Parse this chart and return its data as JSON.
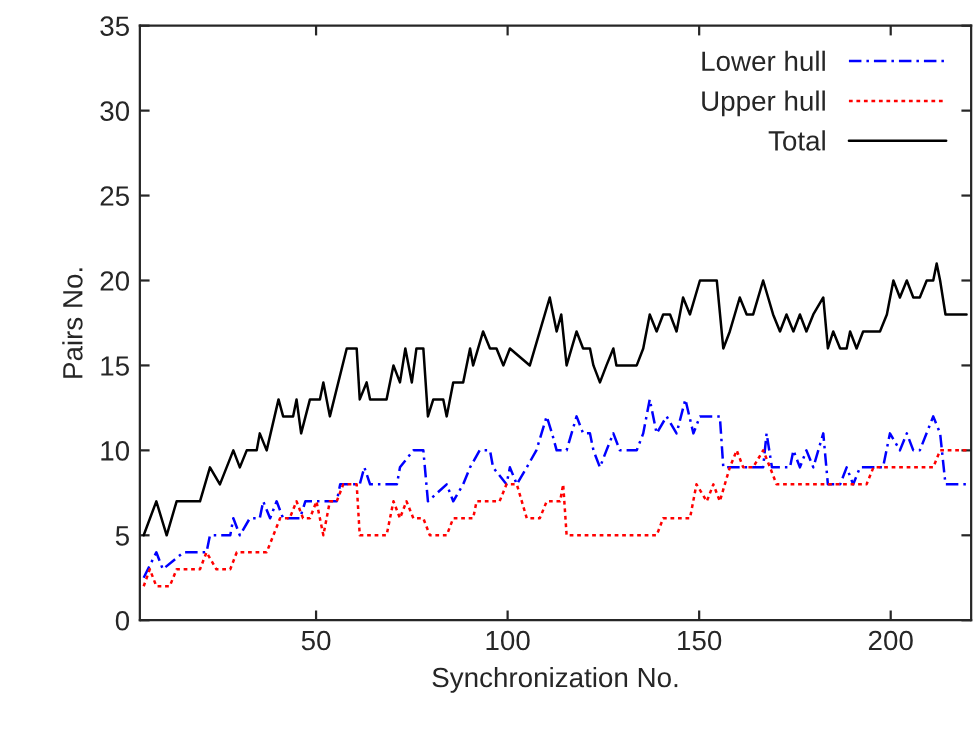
{
  "chart_data": {
    "type": "line",
    "xlabel": "Synchronization No.",
    "ylabel": "Pairs No.",
    "xlim": [
      4,
      221
    ],
    "ylim": [
      0,
      35
    ],
    "xticks": [
      50,
      100,
      150,
      200
    ],
    "yticks": [
      0,
      5,
      10,
      15,
      20,
      25,
      30,
      35
    ],
    "grid": false,
    "legend": "top right",
    "marker": "none",
    "series": [
      {
        "name": "Lower hull",
        "color": "#0000ff",
        "line_style": "dashed",
        "x": [
          5,
          8.3,
          10,
          15.4,
          21.4,
          22.3,
          27.6,
          28.4,
          30.1,
          32.7,
          35.3,
          36.2,
          38,
          39.7,
          41.4,
          45.8,
          47.2,
          55.4,
          56.3,
          61.4,
          62.6,
          64.1,
          71.1,
          71.9,
          75.4,
          78,
          79.2,
          84.1,
          85.8,
          88.4,
          90.2,
          92.7,
          95.4,
          96.2,
          99.7,
          100.6,
          102.4,
          105,
          107.5,
          110.2,
          111.6,
          112.8,
          115.4,
          118,
          119.7,
          121.5,
          122.4,
          124.1,
          125.8,
          127.6,
          129.3,
          133.7,
          135.4,
          137.1,
          138.9,
          141.5,
          144.1,
          146.4,
          148.5,
          150.2,
          155.4,
          156.3,
          166.7,
          167.6,
          169,
          173.7,
          174.6,
          176.3,
          178,
          179.8,
          182.4,
          183.6,
          186.8,
          188.5,
          190.2,
          192,
          198,
          199.8,
          202.4,
          204.2,
          205.9,
          207.6,
          211.1,
          212.9,
          214.3,
          219.8
        ],
        "values": [
          2.5,
          4,
          3,
          4,
          4,
          5,
          5,
          6,
          5,
          6,
          6,
          7,
          6,
          7,
          6,
          6,
          7,
          7,
          8,
          8,
          9,
          8,
          8,
          9,
          10,
          10,
          7,
          8,
          7,
          8,
          9,
          10,
          10,
          9,
          8,
          9,
          8,
          9,
          10,
          12,
          11,
          10,
          10,
          12,
          11,
          11,
          10,
          9,
          10,
          11,
          10,
          10,
          11,
          13,
          11,
          12,
          11,
          13,
          11,
          12,
          12,
          9,
          9,
          11,
          9,
          9,
          10,
          9,
          10,
          9,
          11,
          8,
          8,
          9,
          8,
          9,
          9,
          11,
          10,
          11,
          10,
          10,
          12,
          11,
          8,
          8
        ]
      },
      {
        "name": "Upper hull",
        "color": "#ff0000",
        "line_style": "dotted",
        "x": [
          5,
          6.6,
          8.3,
          11.8,
          13.6,
          19.7,
          21.4,
          24,
          27.6,
          29.3,
          37.1,
          40.6,
          43.1,
          44.9,
          46.6,
          48.4,
          50.1,
          51.9,
          53.6,
          55.4,
          57.1,
          60.6,
          61.4,
          68.4,
          70.2,
          71.9,
          73.6,
          75.4,
          78,
          79.7,
          84.1,
          85.8,
          91,
          91.9,
          97.9,
          99.7,
          102.4,
          105,
          108.4,
          110.2,
          113.7,
          114.5,
          115.4,
          138.9,
          140.6,
          147.6,
          149.3,
          152,
          153.7,
          155.4,
          158,
          159.8,
          161.5,
          164.1,
          166.7,
          168.5,
          170.2,
          172.8,
          193.7,
          195.5,
          211.1,
          212.9,
          219.8
        ],
        "values": [
          2,
          3,
          2,
          2,
          3,
          3,
          4,
          3,
          3,
          4,
          4,
          6,
          6,
          7,
          6,
          6,
          7,
          5,
          7,
          7,
          8,
          8,
          5,
          5,
          7,
          6,
          7,
          6,
          6,
          5,
          5,
          6,
          6,
          7,
          7,
          8,
          8,
          6,
          6,
          7,
          7,
          8,
          5,
          5,
          6,
          6,
          8,
          7,
          8,
          7,
          9,
          10,
          9,
          9,
          10,
          9,
          8,
          8,
          8,
          9,
          9,
          10,
          10
        ]
      },
      {
        "name": "Total",
        "color": "#000000",
        "line_style": "solid",
        "x": [
          5,
          8.3,
          11,
          13.6,
          19.7,
          22.3,
          24.9,
          28.4,
          30.1,
          31.9,
          34.5,
          35.3,
          37.1,
          40.2,
          41.4,
          44,
          44.9,
          46.1,
          48.4,
          51,
          51.9,
          53.6,
          58,
          60.6,
          61.4,
          63.2,
          64.1,
          68.4,
          70.2,
          71.9,
          73.3,
          75,
          76.2,
          78,
          79.2,
          80.6,
          83.2,
          84.1,
          85.8,
          88.4,
          90.2,
          91,
          93.6,
          95.4,
          97.1,
          98.9,
          100.6,
          105.8,
          108.4,
          111,
          112.8,
          114,
          115.4,
          118,
          119.7,
          121.5,
          122.4,
          124.1,
          125.8,
          127.6,
          128.4,
          133.7,
          135.4,
          137.1,
          138.9,
          140.6,
          142.4,
          144.1,
          145.8,
          147.6,
          150.2,
          152.8,
          154.6,
          156.3,
          158,
          160.6,
          162.4,
          164.1,
          166.7,
          169.3,
          171.1,
          172.8,
          174.6,
          176.3,
          178,
          179.8,
          182.4,
          183.6,
          185,
          186.8,
          188.5,
          189.4,
          191.1,
          192.8,
          197.2,
          199,
          200.7,
          202.4,
          204.2,
          205.9,
          207.6,
          209.4,
          211.1,
          212,
          212.9,
          214.3,
          219.8
        ],
        "values": [
          5,
          7,
          5,
          7,
          7,
          9,
          8,
          10,
          9,
          10,
          10,
          11,
          10,
          13,
          12,
          12,
          13,
          11,
          13,
          13,
          14,
          12,
          16,
          16,
          13,
          14,
          13,
          13,
          15,
          14,
          16,
          14,
          16,
          16,
          12,
          13,
          13,
          12,
          14,
          14,
          16,
          15,
          17,
          16,
          16,
          15,
          16,
          15,
          17,
          19,
          17,
          18,
          15,
          17,
          16,
          16,
          15,
          14,
          15,
          16,
          15,
          15,
          16,
          18,
          17,
          18,
          18,
          17,
          19,
          18,
          20,
          20,
          20,
          16,
          17,
          19,
          18,
          18,
          20,
          18,
          17,
          18,
          17,
          18,
          17,
          18,
          19,
          16,
          17,
          16,
          16,
          17,
          16,
          17,
          17,
          18,
          20,
          19,
          20,
          19,
          19,
          20,
          20,
          21,
          20,
          18,
          18
        ]
      }
    ]
  }
}
